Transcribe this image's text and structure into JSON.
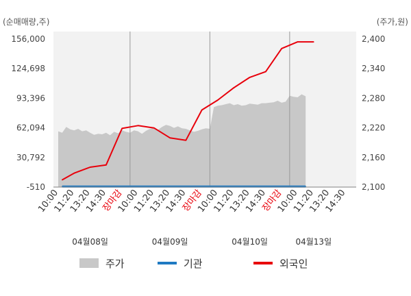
{
  "chart_data": {
    "type": "line",
    "left_axis_unit": "(순매매량,주)",
    "right_axis_unit": "(주가,원)",
    "left_ticks": [
      "156,000",
      "124,698",
      "93,396",
      "62,094",
      "30,792",
      "-510"
    ],
    "left_tick_values": [
      156000,
      124698,
      93396,
      62094,
      30792,
      -510
    ],
    "right_ticks": [
      "2,400",
      "2,340",
      "2,280",
      "2,220",
      "2,160",
      "2,100"
    ],
    "right_tick_values": [
      2400,
      2340,
      2280,
      2220,
      2160,
      2100
    ],
    "left_range": [
      -510,
      156000
    ],
    "right_range": [
      2100,
      2400
    ],
    "x_ticks": [
      {
        "label": "10:00",
        "close": false
      },
      {
        "label": "11:20",
        "close": false
      },
      {
        "label": "13:20",
        "close": false
      },
      {
        "label": "14:30",
        "close": false
      },
      {
        "label": "장마감",
        "close": true
      },
      {
        "label": "10:00",
        "close": false
      },
      {
        "label": "11:20",
        "close": false
      },
      {
        "label": "13:20",
        "close": false
      },
      {
        "label": "14:30",
        "close": false
      },
      {
        "label": "장마감",
        "close": true
      },
      {
        "label": "10:00",
        "close": false
      },
      {
        "label": "11:20",
        "close": false
      },
      {
        "label": "13:20",
        "close": false
      },
      {
        "label": "14:30",
        "close": false
      },
      {
        "label": "장마감",
        "close": true
      },
      {
        "label": "10:00",
        "close": false
      },
      {
        "label": "11:20",
        "close": false
      },
      {
        "label": "13:20",
        "close": false
      },
      {
        "label": "14:30",
        "close": false
      }
    ],
    "dates": [
      {
        "label": "04월08일",
        "tick_index": 2
      },
      {
        "label": "04월09일",
        "tick_index": 7
      },
      {
        "label": "04월10일",
        "tick_index": 12
      },
      {
        "label": "04월13일",
        "tick_index": 16
      }
    ],
    "day_separator_tick_indices": [
      4.5,
      9.5,
      14.5
    ],
    "price_area": {
      "name": "주가",
      "color": "#c8c8c8",
      "x": [
        0,
        0.25,
        0.5,
        0.75,
        1,
        1.25,
        1.5,
        1.75,
        2,
        2.25,
        2.5,
        2.75,
        3,
        3.25,
        3.5,
        3.75,
        4,
        4.25,
        4.5,
        4.75,
        5,
        5.25,
        5.5,
        5.75,
        6,
        6.25,
        6.5,
        6.75,
        7,
        7.25,
        7.5,
        7.75,
        8,
        8.25,
        8.5,
        8.75,
        9,
        9.25,
        9.5,
        9.75,
        10,
        10.25,
        10.5,
        10.75,
        11,
        11.25,
        11.5,
        11.75,
        12,
        12.25,
        12.5,
        12.75,
        13,
        13.25,
        13.5,
        13.75,
        14,
        14.25,
        14.5,
        14.75,
        15,
        15.25,
        15.5
      ],
      "y": [
        2213,
        2210,
        2222,
        2217,
        2215,
        2218,
        2213,
        2215,
        2210,
        2206,
        2208,
        2207,
        2210,
        2205,
        2212,
        2209,
        2215,
        2212,
        2210,
        2215,
        2213,
        2208,
        2214,
        2218,
        2220,
        2216,
        2222,
        2226,
        2224,
        2220,
        2223,
        2219,
        2218,
        2215,
        2212,
        2214,
        2217,
        2219,
        2218,
        2262,
        2265,
        2266,
        2268,
        2270,
        2266,
        2268,
        2265,
        2266,
        2269,
        2268,
        2267,
        2270,
        2270,
        2271,
        2272,
        2275,
        2271,
        2273,
        2285,
        2283,
        2282,
        2288,
        2284
      ]
    },
    "series": [
      {
        "name": "기관",
        "color": "#1f7ac2",
        "x": [
          0.25,
          15.5
        ],
        "y": [
          0,
          0
        ]
      },
      {
        "name": "외국인",
        "color": "#e8000b",
        "x": [
          0.25,
          1,
          2,
          3,
          4,
          5,
          6,
          7,
          8,
          9,
          10,
          11,
          12,
          13,
          14,
          15,
          16
        ],
        "y": [
          7100,
          14200,
          20500,
          22800,
          61500,
          64500,
          62000,
          51500,
          49000,
          81000,
          91500,
          104500,
          115500,
          121500,
          146000,
          153000,
          153000
        ]
      }
    ],
    "legend": [
      {
        "label": "주가",
        "kind": "area",
        "color": "#c8c8c8"
      },
      {
        "label": "기관",
        "kind": "line",
        "color": "#1f7ac2"
      },
      {
        "label": "외국인",
        "kind": "line",
        "color": "#e8000b"
      }
    ],
    "grid": false,
    "legend_position": "bottom"
  }
}
